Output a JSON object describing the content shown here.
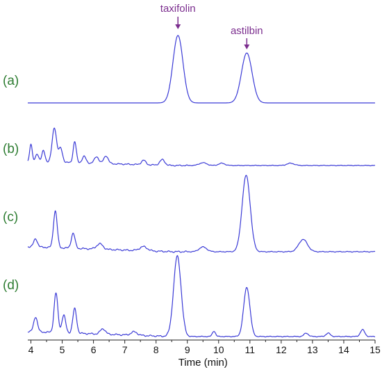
{
  "chart_data": {
    "type": "line",
    "title": "",
    "xlabel": "Time (min)",
    "ylabel": "",
    "xlim": [
      3.9,
      15
    ],
    "x_ticks": [
      "4",
      "5",
      "6",
      "7",
      "8",
      "9",
      "10",
      "11",
      "12",
      "13",
      "14",
      "15"
    ],
    "grid": false,
    "line_color": "#3a3ad6",
    "label_color": "#2e7d32",
    "annotation_color": "#7b2d8e",
    "annotations": [
      {
        "label": "taxifolin",
        "x": 8.7
      },
      {
        "label": "astilbin",
        "x": 10.9
      }
    ],
    "series": [
      {
        "name": "(a)",
        "baseline": 0,
        "peaks": [
          {
            "x": 8.7,
            "height": 100,
            "width": 0.16
          },
          {
            "x": 10.9,
            "height": 74,
            "width": 0.17
          }
        ]
      },
      {
        "name": "(b)",
        "baseline": 0,
        "peaks": [
          {
            "x": 4.0,
            "height": 32,
            "width": 0.04
          },
          {
            "x": 4.2,
            "height": 14,
            "width": 0.05
          },
          {
            "x": 4.4,
            "height": 20,
            "width": 0.05
          },
          {
            "x": 4.75,
            "height": 62,
            "width": 0.07
          },
          {
            "x": 4.95,
            "height": 25,
            "width": 0.06
          },
          {
            "x": 5.4,
            "height": 38,
            "width": 0.05
          },
          {
            "x": 5.7,
            "height": 12,
            "width": 0.06
          },
          {
            "x": 6.1,
            "height": 12,
            "width": 0.07
          },
          {
            "x": 6.4,
            "height": 14,
            "width": 0.07
          },
          {
            "x": 7.6,
            "height": 8,
            "width": 0.07
          },
          {
            "x": 8.2,
            "height": 10,
            "width": 0.08
          },
          {
            "x": 9.5,
            "height": 5,
            "width": 0.12
          },
          {
            "x": 10.1,
            "height": 4,
            "width": 0.1
          },
          {
            "x": 12.3,
            "height": 4,
            "width": 0.12
          }
        ]
      },
      {
        "name": "(c)",
        "baseline": 0,
        "peaks": [
          {
            "x": 4.15,
            "height": 12,
            "width": 0.06
          },
          {
            "x": 4.78,
            "height": 54,
            "width": 0.06
          },
          {
            "x": 5.35,
            "height": 22,
            "width": 0.06
          },
          {
            "x": 6.2,
            "height": 8,
            "width": 0.1
          },
          {
            "x": 7.6,
            "height": 6,
            "width": 0.12
          },
          {
            "x": 9.5,
            "height": 7,
            "width": 0.12
          },
          {
            "x": 10.88,
            "height": 112,
            "width": 0.13
          },
          {
            "x": 12.7,
            "height": 18,
            "width": 0.14
          }
        ]
      },
      {
        "name": "(d)",
        "baseline": 0,
        "peaks": [
          {
            "x": 4.15,
            "height": 22,
            "width": 0.06
          },
          {
            "x": 4.8,
            "height": 58,
            "width": 0.06
          },
          {
            "x": 5.05,
            "height": 26,
            "width": 0.06
          },
          {
            "x": 5.4,
            "height": 36,
            "width": 0.06
          },
          {
            "x": 6.3,
            "height": 8,
            "width": 0.08
          },
          {
            "x": 7.3,
            "height": 5,
            "width": 0.1
          },
          {
            "x": 8.68,
            "height": 118,
            "width": 0.12
          },
          {
            "x": 9.85,
            "height": 8,
            "width": 0.05
          },
          {
            "x": 10.9,
            "height": 72,
            "width": 0.1
          },
          {
            "x": 12.8,
            "height": 5,
            "width": 0.07
          },
          {
            "x": 13.5,
            "height": 5,
            "width": 0.07
          },
          {
            "x": 14.6,
            "height": 10,
            "width": 0.07
          }
        ]
      }
    ]
  }
}
